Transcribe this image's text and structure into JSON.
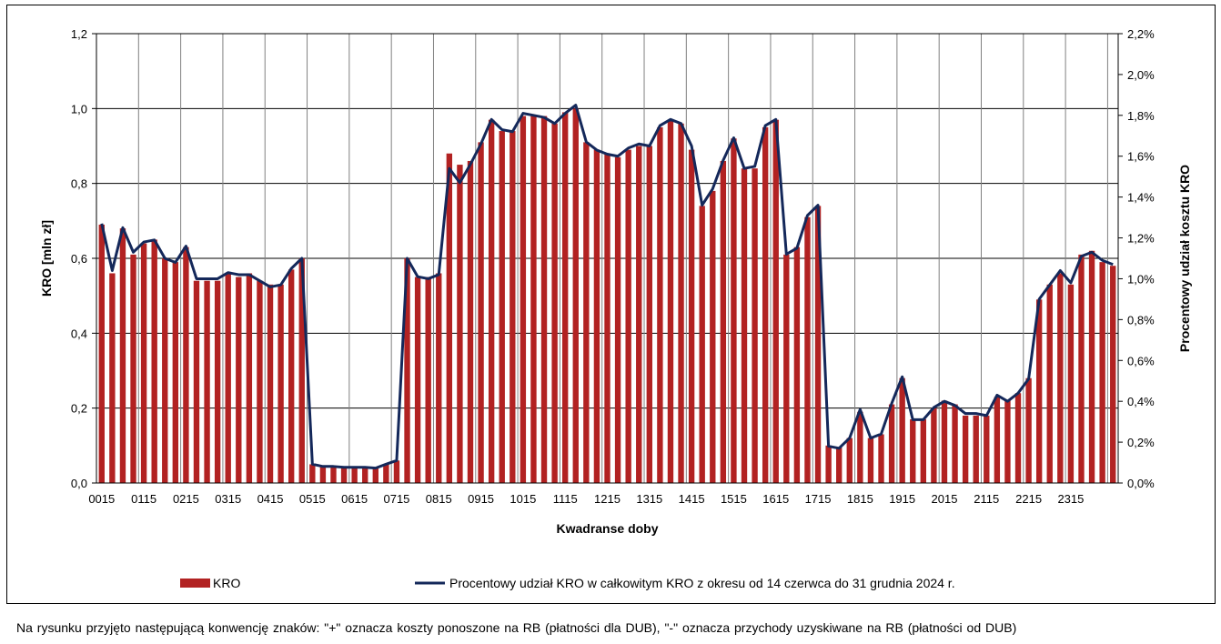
{
  "chart_data": {
    "type": "bar",
    "xlabel": "Kwadranse doby",
    "ylabel": "KRO [mln zł]",
    "ylabel_right": "Procentowy udział kosztu KRO",
    "ylim": [
      0,
      1.2
    ],
    "ylim_right": [
      0,
      2.2
    ],
    "yticks": [
      "0,0",
      "0,2",
      "0,4",
      "0,6",
      "0,8",
      "1,0",
      "1,2"
    ],
    "yticks_right": [
      "0,0%",
      "0,2%",
      "0,4%",
      "0,6%",
      "0,8%",
      "1,0%",
      "1,2%",
      "1,4%",
      "1,6%",
      "1,8%",
      "2,0%",
      "2,2%"
    ],
    "x_tick_labels": [
      "0015",
      "0115",
      "0215",
      "0315",
      "0415",
      "0515",
      "0615",
      "0715",
      "0815",
      "0915",
      "1015",
      "1115",
      "1215",
      "1315",
      "1415",
      "1515",
      "1615",
      "1715",
      "1815",
      "1915",
      "2015",
      "2115",
      "2215",
      "2315"
    ],
    "grid": true,
    "legend_position": "bottom",
    "series": [
      {
        "name": "KRO",
        "type": "bar",
        "color": "#b22222",
        "values": [
          0.69,
          0.56,
          0.68,
          0.61,
          0.64,
          0.65,
          0.6,
          0.59,
          0.63,
          0.54,
          0.54,
          0.54,
          0.56,
          0.55,
          0.56,
          0.54,
          0.53,
          0.53,
          0.57,
          0.6,
          0.05,
          0.044,
          0.044,
          0.042,
          0.042,
          0.042,
          0.04,
          0.05,
          0.06,
          0.6,
          0.55,
          0.55,
          0.56,
          0.88,
          0.85,
          0.86,
          0.91,
          0.97,
          0.94,
          0.94,
          0.98,
          0.98,
          0.98,
          0.96,
          0.99,
          1.0,
          0.91,
          0.89,
          0.88,
          0.87,
          0.89,
          0.9,
          0.9,
          0.95,
          0.97,
          0.96,
          0.89,
          0.74,
          0.78,
          0.86,
          0.92,
          0.84,
          0.84,
          0.95,
          0.97,
          0.61,
          0.63,
          0.71,
          0.74,
          0.1,
          0.095,
          0.12,
          0.19,
          0.12,
          0.13,
          0.21,
          0.28,
          0.17,
          0.17,
          0.2,
          0.22,
          0.21,
          0.18,
          0.18,
          0.18,
          0.23,
          0.22,
          0.24,
          0.28,
          0.49,
          0.53,
          0.56,
          0.53,
          0.61,
          0.62,
          0.59,
          0.58
        ]
      },
      {
        "name": "Procentowy udział KRO w całkowitym KRO z okresu od 14 czerwca do 31 grudnia 2024 r.",
        "type": "line",
        "axis": "right",
        "color": "#14285a",
        "values": [
          1.27,
          1.04,
          1.25,
          1.13,
          1.18,
          1.19,
          1.1,
          1.08,
          1.16,
          1.0,
          1.0,
          1.0,
          1.03,
          1.02,
          1.02,
          0.99,
          0.96,
          0.97,
          1.05,
          1.1,
          0.092,
          0.081,
          0.081,
          0.077,
          0.077,
          0.077,
          0.073,
          0.092,
          0.11,
          1.1,
          1.01,
          1.0,
          1.02,
          1.54,
          1.47,
          1.56,
          1.66,
          1.78,
          1.73,
          1.72,
          1.81,
          1.8,
          1.79,
          1.76,
          1.81,
          1.85,
          1.67,
          1.63,
          1.61,
          1.6,
          1.64,
          1.66,
          1.65,
          1.75,
          1.78,
          1.76,
          1.65,
          1.36,
          1.44,
          1.58,
          1.69,
          1.54,
          1.55,
          1.75,
          1.78,
          1.12,
          1.15,
          1.31,
          1.36,
          0.18,
          0.17,
          0.22,
          0.36,
          0.22,
          0.24,
          0.39,
          0.52,
          0.31,
          0.31,
          0.37,
          0.4,
          0.38,
          0.34,
          0.34,
          0.33,
          0.43,
          0.4,
          0.44,
          0.51,
          0.9,
          0.97,
          1.04,
          0.98,
          1.11,
          1.13,
          1.09,
          1.07
        ]
      }
    ]
  },
  "footnote": "Na rysunku przyjęto następującą konwencję znaków: \"+\" oznacza koszty ponoszone na RB (płatności dla DUB), \"-\" oznacza przychody uzyskiwane na RB (płatności od DUB)"
}
